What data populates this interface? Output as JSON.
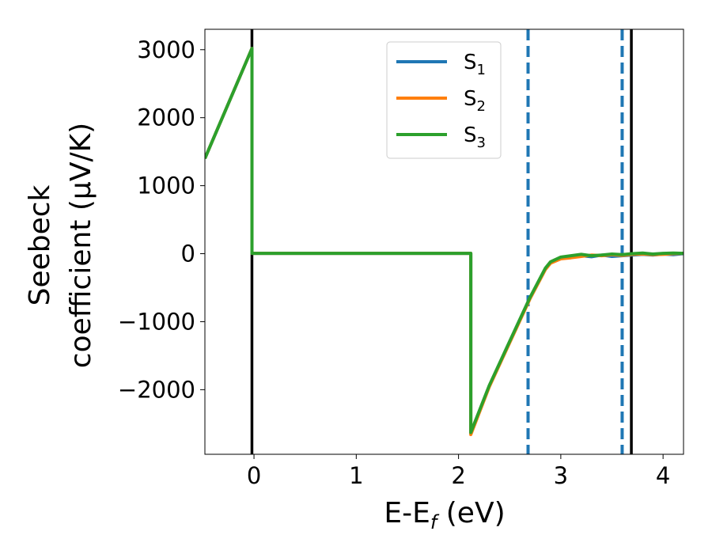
{
  "chart_data": {
    "type": "line",
    "title": "",
    "xlabel": {
      "main": "E-E",
      "sub": "f",
      "unit": " (eV)"
    },
    "ylabel": {
      "line1": "Seebeck",
      "line2": "coefficient  (μV/K)"
    },
    "xlim": [
      -0.48,
      4.2
    ],
    "ylim": [
      -2950,
      3300
    ],
    "xticks": [
      0,
      1,
      2,
      3,
      4
    ],
    "xtick_labels": [
      "0",
      "1",
      "2",
      "3",
      "4"
    ],
    "yticks": [
      3000,
      2000,
      1000,
      0,
      -1000,
      -2000
    ],
    "ytick_labels": [
      "3000",
      "2000",
      "1000",
      "0",
      "−1000",
      "−2000"
    ],
    "grid": false,
    "legend_position": "top-center",
    "series": [
      {
        "name": "S",
        "sub": "1",
        "color": "#1f77b4",
        "x": [
          -0.48,
          -0.02,
          -0.02,
          2.12,
          2.12,
          2.3,
          2.5,
          2.7,
          2.85,
          2.9,
          3.0,
          3.1,
          3.2,
          3.3,
          3.4,
          3.5,
          3.6,
          3.7,
          3.8,
          3.9,
          4.0,
          4.1,
          4.2
        ],
        "y": [
          1400,
          3020,
          5,
          5,
          -2640,
          -1950,
          -1300,
          -650,
          -220,
          -130,
          -60,
          -40,
          -30,
          -45,
          -20,
          -40,
          -30,
          -20,
          -10,
          -20,
          -5,
          -15,
          0
        ]
      },
      {
        "name": "S",
        "sub": "2",
        "color": "#ff7f0e",
        "x": [
          -0.48,
          -0.02,
          -0.02,
          2.12,
          2.12,
          2.3,
          2.5,
          2.7,
          2.85,
          2.9,
          3.0,
          3.1,
          3.2,
          3.3,
          3.4,
          3.5,
          3.6,
          3.7,
          3.8,
          3.9,
          4.0,
          4.1,
          4.2
        ],
        "y": [
          1400,
          3020,
          5,
          5,
          -2660,
          -1960,
          -1310,
          -660,
          -230,
          -140,
          -75,
          -60,
          -40,
          -20,
          -30,
          -15,
          -25,
          -10,
          -5,
          -15,
          -10,
          0,
          5
        ]
      },
      {
        "name": "S",
        "sub": "3",
        "color": "#2ca02c",
        "x": [
          -0.48,
          -0.02,
          -0.02,
          2.12,
          2.12,
          2.3,
          2.5,
          2.7,
          2.85,
          2.9,
          3.0,
          3.1,
          3.2,
          3.3,
          3.4,
          3.5,
          3.6,
          3.7,
          3.8,
          3.9,
          4.0,
          4.1,
          4.2
        ],
        "y": [
          1400,
          3020,
          5,
          5,
          -2630,
          -1940,
          -1290,
          -640,
          -210,
          -120,
          -50,
          -30,
          -10,
          -30,
          -20,
          -5,
          -15,
          0,
          10,
          -5,
          5,
          10,
          5
        ]
      }
    ],
    "vlines": [
      {
        "x": -0.02,
        "style": "solid",
        "color": "#000000"
      },
      {
        "x": 3.69,
        "style": "solid",
        "color": "#000000"
      },
      {
        "x": 2.68,
        "style": "dashed",
        "color": "#1f77b4"
      },
      {
        "x": 3.6,
        "style": "dashed",
        "color": "#1f77b4"
      }
    ]
  }
}
